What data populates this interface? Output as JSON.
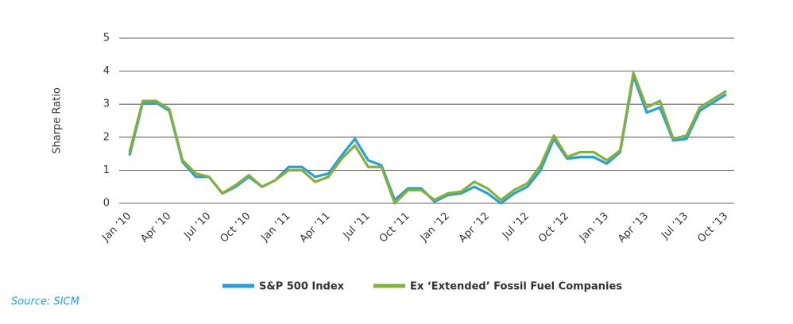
{
  "chart_data": {
    "type": "line",
    "y_label": "Sharpe Ratio",
    "source": "Source: SICM",
    "categories": [
      "Jan ’10",
      null,
      null,
      "Apr ’10",
      null,
      null,
      "Jul ’10",
      null,
      null,
      "Oct ’10",
      null,
      null,
      "Jan ’11",
      null,
      null,
      "Apr ’11",
      null,
      null,
      "Jul ’11",
      null,
      null,
      "Oct ’11",
      null,
      null,
      "Jan ’12",
      null,
      null,
      "Apr ’12",
      null,
      null,
      "Jul ’12",
      null,
      null,
      "Oct ’12",
      null,
      null,
      "Jan ’13",
      null,
      null,
      "Apr ’13",
      null,
      null,
      "Jul ’13",
      null,
      null,
      "Oct ’13"
    ],
    "series": [
      {
        "name": "S&P 500 Index",
        "color": "#2a9fd6",
        "values": [
          1.45,
          3.05,
          3.05,
          2.8,
          1.25,
          0.8,
          0.8,
          0.3,
          0.5,
          0.8,
          0.5,
          0.7,
          1.1,
          1.1,
          0.8,
          0.9,
          1.45,
          1.95,
          1.3,
          1.15,
          0.1,
          0.45,
          0.45,
          0.05,
          0.25,
          0.3,
          0.5,
          0.3,
          0.0,
          0.3,
          0.5,
          1.0,
          1.95,
          1.35,
          1.4,
          1.4,
          1.2,
          1.55,
          3.85,
          2.75,
          2.9,
          1.9,
          1.95,
          2.8,
          3.05,
          3.3
        ]
      },
      {
        "name": "Ex ‘Extended’ Fossil Fuel Companies",
        "color": "#84b03c",
        "values": [
          1.55,
          3.1,
          3.1,
          2.85,
          1.3,
          0.9,
          0.8,
          0.3,
          0.55,
          0.85,
          0.5,
          0.7,
          1.0,
          1.0,
          0.65,
          0.8,
          1.35,
          1.75,
          1.1,
          1.1,
          0.0,
          0.4,
          0.4,
          0.1,
          0.3,
          0.35,
          0.65,
          0.45,
          0.1,
          0.4,
          0.6,
          1.15,
          2.05,
          1.4,
          1.55,
          1.55,
          1.3,
          1.6,
          3.95,
          2.9,
          3.1,
          1.95,
          2.05,
          2.9,
          3.15,
          3.4
        ]
      }
    ],
    "ylim": [
      0,
      5
    ],
    "yticks": [
      0,
      1,
      2,
      3,
      4,
      5
    ],
    "grid": true,
    "legend": "bottom"
  }
}
